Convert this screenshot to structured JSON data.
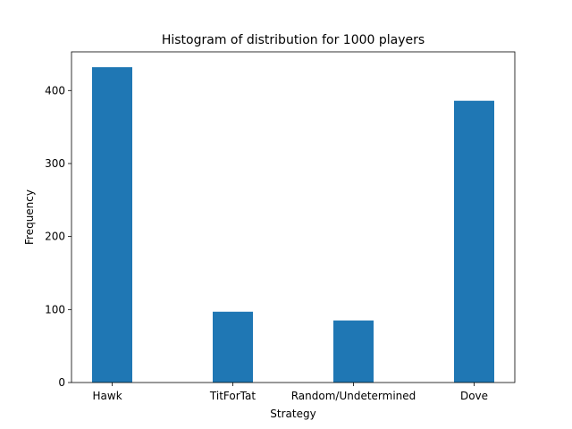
{
  "chart_data": {
    "type": "bar",
    "title": "Histogram of distribution for 1000 players",
    "xlabel": "Strategy",
    "ylabel": "Frequency",
    "categories": [
      "Hawk",
      "TitForTat",
      "Random/Undetermined",
      "Dove"
    ],
    "values": [
      432,
      97,
      85,
      386
    ],
    "ylim": [
      0,
      453
    ],
    "yticks": [
      0,
      100,
      200,
      300,
      400
    ],
    "grid": false,
    "bar_color": "#1f77b4"
  }
}
